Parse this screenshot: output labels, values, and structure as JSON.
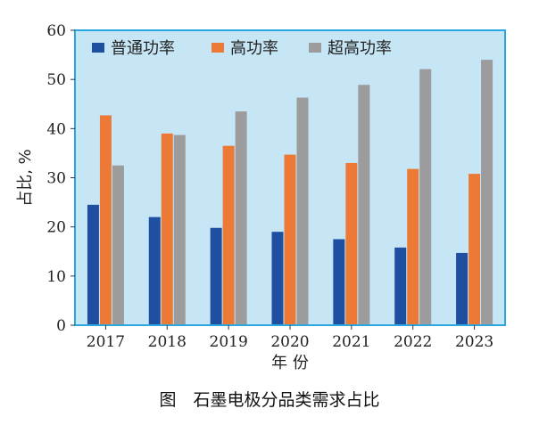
{
  "chart_data": {
    "type": "bar",
    "caption": "图　石墨电极分品类需求占比",
    "xlabel": "年 份",
    "ylabel": "占比, %",
    "ylim": [
      0,
      60
    ],
    "yticks": [
      0,
      10,
      20,
      30,
      40,
      50,
      60
    ],
    "grid": false,
    "legend_position": "top-left",
    "plot_background": "#c6e6f6",
    "frame_color": "#2ba7e0",
    "categories": [
      "2017",
      "2018",
      "2019",
      "2020",
      "2021",
      "2022",
      "2023"
    ],
    "series": [
      {
        "name": "普通功率",
        "color": "#1f4fa0",
        "values": [
          24.5,
          22.0,
          19.8,
          19.0,
          17.5,
          15.8,
          14.7
        ]
      },
      {
        "name": "高功率",
        "color": "#ec7a36",
        "values": [
          42.7,
          39.0,
          36.5,
          34.7,
          33.0,
          31.8,
          30.8
        ]
      },
      {
        "name": "超高功率",
        "color": "#9c9c9c",
        "values": [
          32.5,
          38.7,
          43.5,
          46.3,
          48.9,
          52.1,
          54.0
        ]
      }
    ]
  }
}
